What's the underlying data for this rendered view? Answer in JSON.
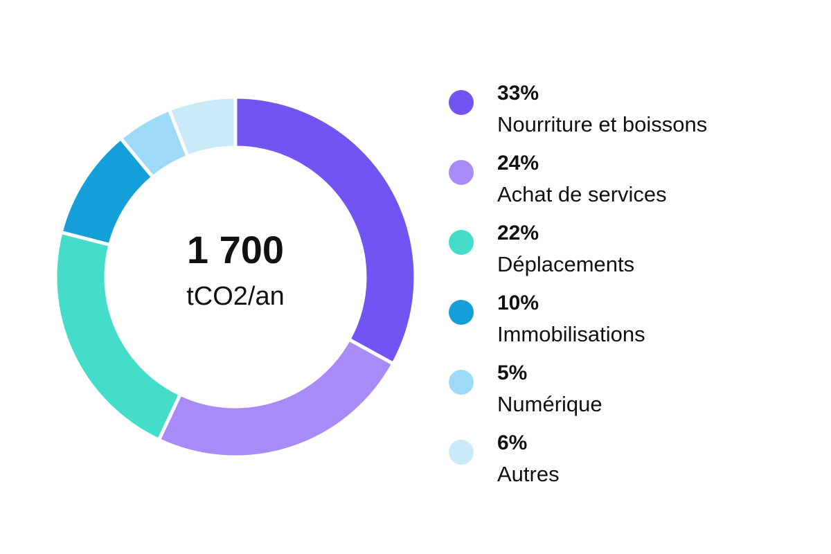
{
  "chart_data": {
    "type": "pie",
    "center": {
      "total": "1 700",
      "unit": "tCO2/an"
    },
    "slices": [
      {
        "label": "Nourriture et boissons",
        "value": 33,
        "value_label": "33%",
        "color": "#7254F3"
      },
      {
        "label": "Achat de services",
        "value": 24,
        "value_label": "24%",
        "color": "#A98BF8"
      },
      {
        "label": "Déplacements",
        "value": 22,
        "value_label": "22%",
        "color": "#44DDCA"
      },
      {
        "label": "Immobilisations",
        "value": 10,
        "value_label": "10%",
        "color": "#149FD8"
      },
      {
        "label": "Numérique",
        "value": 5,
        "value_label": "5%",
        "color": "#9DDAF7"
      },
      {
        "label": "Autres",
        "value": 6,
        "value_label": "6%",
        "color": "#CBEAF8"
      }
    ],
    "legend_position": "right"
  }
}
